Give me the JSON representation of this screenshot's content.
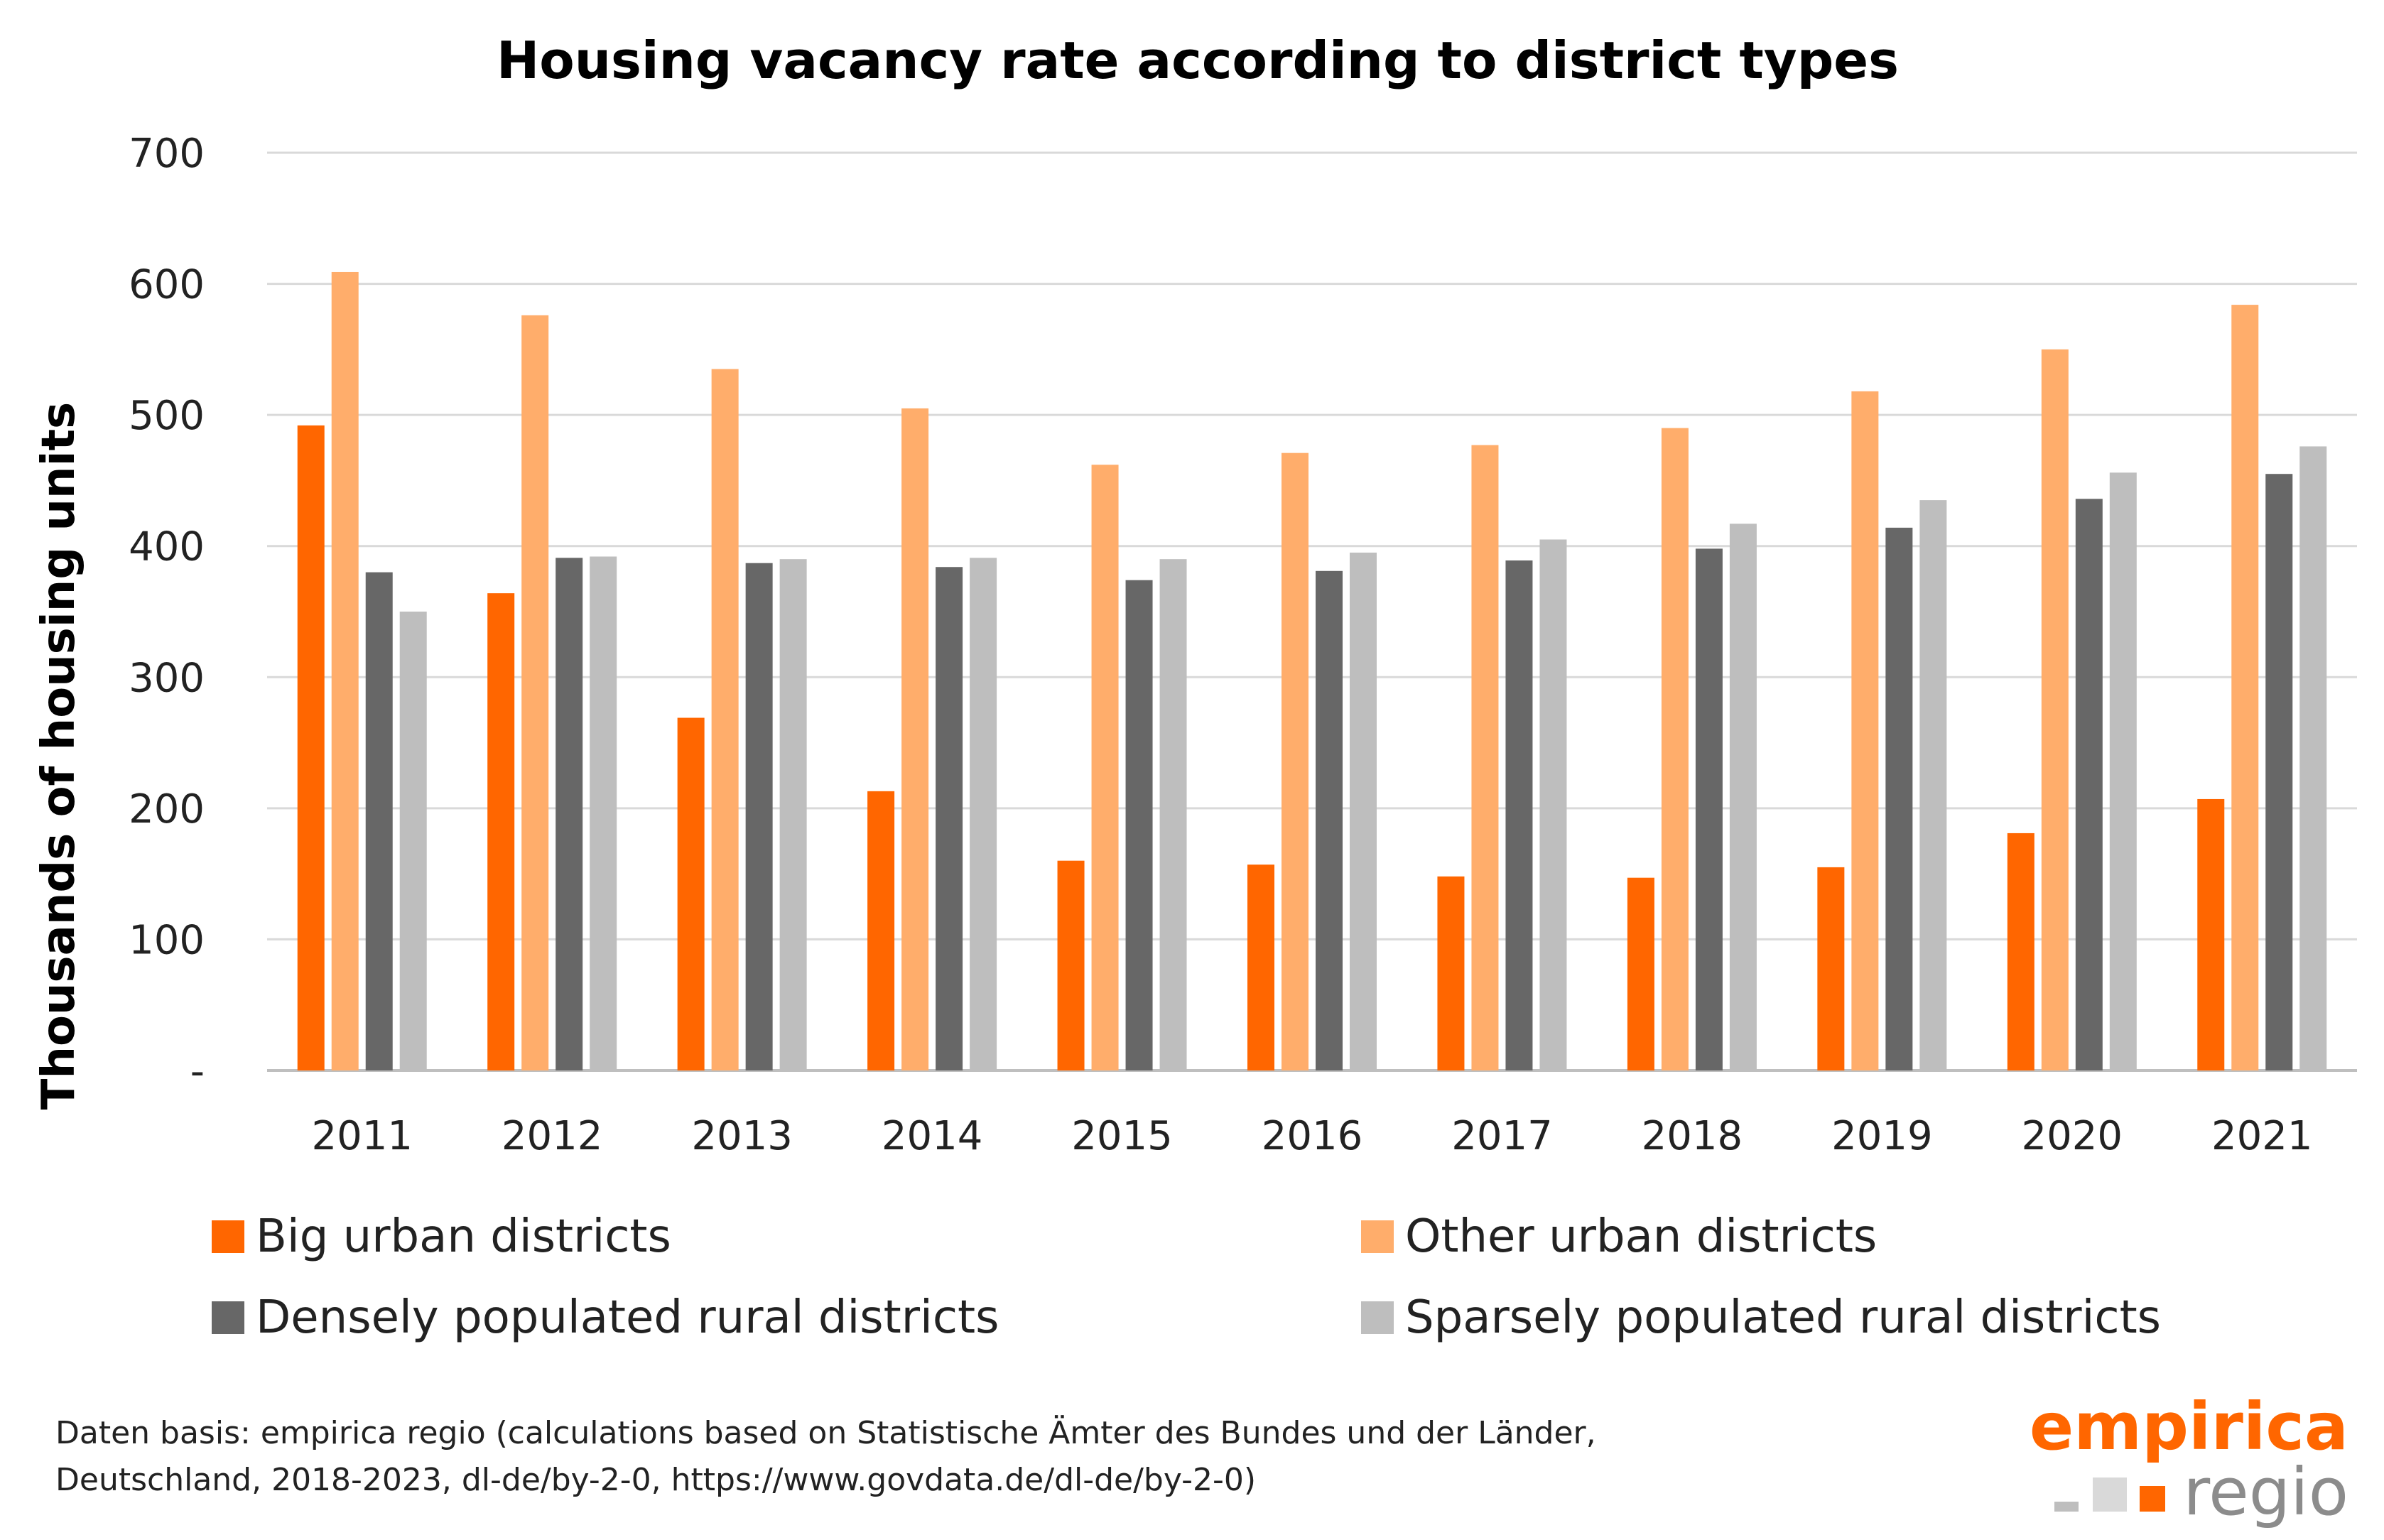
{
  "chart_data": {
    "type": "bar",
    "title": "Housing vacancy rate according to district types",
    "ylabel": "Thousands of housing units",
    "xlabel": "",
    "ylim": [
      0,
      700
    ],
    "yticks": [
      0,
      100,
      200,
      300,
      400,
      500,
      600,
      700
    ],
    "ytick_labels": [
      "-",
      "100",
      "200",
      "300",
      "400",
      "500",
      "600",
      "700"
    ],
    "grid": true,
    "legend_position": "bottom",
    "categories": [
      "2011",
      "2012",
      "2013",
      "2014",
      "2015",
      "2016",
      "2017",
      "2018",
      "2019",
      "2020",
      "2021"
    ],
    "series": [
      {
        "name": "Big urban districts",
        "color": "#FF6600",
        "values": [
          492,
          364,
          269,
          213,
          160,
          157,
          148,
          147,
          155,
          181,
          207
        ]
      },
      {
        "name": "Other urban districts",
        "color": "#FFAD6B",
        "values": [
          609,
          576,
          535,
          505,
          462,
          471,
          477,
          490,
          518,
          550,
          584
        ]
      },
      {
        "name": "Densely populated rural districts",
        "color": "#676767",
        "values": [
          380,
          391,
          387,
          384,
          374,
          381,
          389,
          398,
          414,
          436,
          455
        ]
      },
      {
        "name": "Sparsely populated rural districts",
        "color": "#BEBEBE",
        "values": [
          350,
          392,
          390,
          391,
          390,
          395,
          405,
          417,
          435,
          456,
          476
        ]
      }
    ]
  },
  "source": {
    "line1": "Daten basis: empirica regio (calculations based on Statistische Ämter des Bundes und der Länder,",
    "line2": "Deutschland, 2018-2023, dl-de/by-2-0, https://www.govdata.de/dl-de/by-2-0)"
  },
  "logo": {
    "top": "empirica",
    "bottom": "regio",
    "accent_color": "#FF6600",
    "secondary_color": "#8C8C8C",
    "square_colors": [
      "#BEBEBE",
      "#D9D9D9",
      "#FF6600"
    ]
  }
}
